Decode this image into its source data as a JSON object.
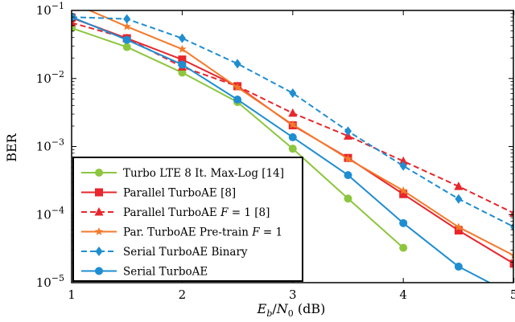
{
  "chart_data": {
    "type": "line",
    "xlabel": "E_b/N_0 (dB)",
    "xlabel_parts": {
      "e": "E",
      "b": "b",
      "slash": "/",
      "n": "N",
      "zero": "0",
      "unit": " (dB)"
    },
    "ylabel": "BER",
    "xlim": [
      1,
      5
    ],
    "ylim": [
      1e-05,
      0.1
    ],
    "yscale": "log",
    "x_ticks": [
      {
        "value": 1,
        "label": "1"
      },
      {
        "value": 2,
        "label": "2"
      },
      {
        "value": 3,
        "label": "3"
      },
      {
        "value": 4,
        "label": "4"
      },
      {
        "value": 5,
        "label": "5"
      }
    ],
    "y_ticks": [
      {
        "value": 0.1,
        "base": "10",
        "exp": "−1"
      },
      {
        "value": 0.01,
        "base": "10",
        "exp": "−2"
      },
      {
        "value": 0.001,
        "base": "10",
        "exp": "−3"
      },
      {
        "value": 0.0001,
        "base": "10",
        "exp": "−4"
      },
      {
        "value": 1e-05,
        "base": "10",
        "exp": "−5"
      }
    ],
    "grid": false,
    "legend_position": "bottom-left",
    "series": [
      {
        "name": "Turbo LTE 8 It. Max-Log [14]",
        "name_parts": {
          "pre": "Turbo LTE 8 It. Max-Log [14]"
        },
        "color": "#8cc63e",
        "dash": "solid",
        "marker": "circle",
        "x": [
          1,
          1.5,
          2,
          2.5,
          3,
          3.5,
          4
        ],
        "y": [
          0.055,
          0.029,
          0.0122,
          0.0045,
          0.00093,
          0.000172,
          3.25e-05
        ]
      },
      {
        "name": "Parallel TurboAE [8]",
        "name_parts": {
          "pre": "Parallel TurboAE [8]"
        },
        "color": "#e8262b",
        "dash": "solid",
        "marker": "square",
        "x": [
          1,
          1.5,
          2,
          2.5,
          3,
          3.5,
          4,
          4.5,
          5
        ],
        "y": [
          0.078,
          0.039,
          0.019,
          0.0077,
          0.00205,
          0.00068,
          0.0002,
          5.85e-05,
          1.9e-05
        ]
      },
      {
        "name": "Parallel TurboAE F = 1 [8]",
        "name_parts": {
          "pre": "Parallel TurboAE ",
          "var": "F",
          "post": " = 1 [8]"
        },
        "color": "#e8262b",
        "dash": "dashed",
        "marker": "triangle",
        "x": [
          1,
          1.5,
          2,
          2.5,
          3,
          3.5,
          4,
          4.5,
          5
        ],
        "y": [
          0.066,
          0.039,
          0.0148,
          0.0077,
          0.0031,
          0.00143,
          0.00061,
          0.00026,
          0.000105
        ]
      },
      {
        "name": "Par. TurboAE Pre-train F = 1",
        "name_parts": {
          "pre": "Par. TurboAE Pre-train ",
          "var": "F",
          "post": " = 1"
        },
        "color": "#f47a2a",
        "dash": "solid",
        "marker": "star",
        "x": [
          1.05,
          1.5,
          2,
          2.5,
          3,
          3.5,
          4,
          4.5,
          5
        ],
        "y": [
          0.12,
          0.058,
          0.027,
          0.0074,
          0.0021,
          0.00066,
          0.000225,
          6.55e-05,
          2.5e-05
        ]
      },
      {
        "name": "Serial TurboAE Binary",
        "name_parts": {
          "pre": "Serial TurboAE Binary"
        },
        "color": "#1f8ed1",
        "dash": "dashed",
        "marker": "diamond",
        "x": [
          1,
          1.5,
          2,
          2.5,
          3,
          3.5,
          4,
          4.5,
          5
        ],
        "y": [
          0.08,
          0.075,
          0.039,
          0.0165,
          0.0061,
          0.00168,
          0.00052,
          0.00017,
          6.6e-05
        ]
      },
      {
        "name": "Serial TurboAE",
        "name_parts": {
          "pre": "Serial TurboAE"
        },
        "color": "#1f8ed1",
        "dash": "solid",
        "marker": "circle",
        "x": [
          1,
          1.5,
          2,
          2.5,
          3,
          3.5,
          4,
          4.5,
          4.95
        ],
        "y": [
          0.08,
          0.037,
          0.016,
          0.0049,
          0.00137,
          0.00038,
          7.5e-05,
          1.72e-05,
          7.2e-06
        ]
      }
    ]
  }
}
